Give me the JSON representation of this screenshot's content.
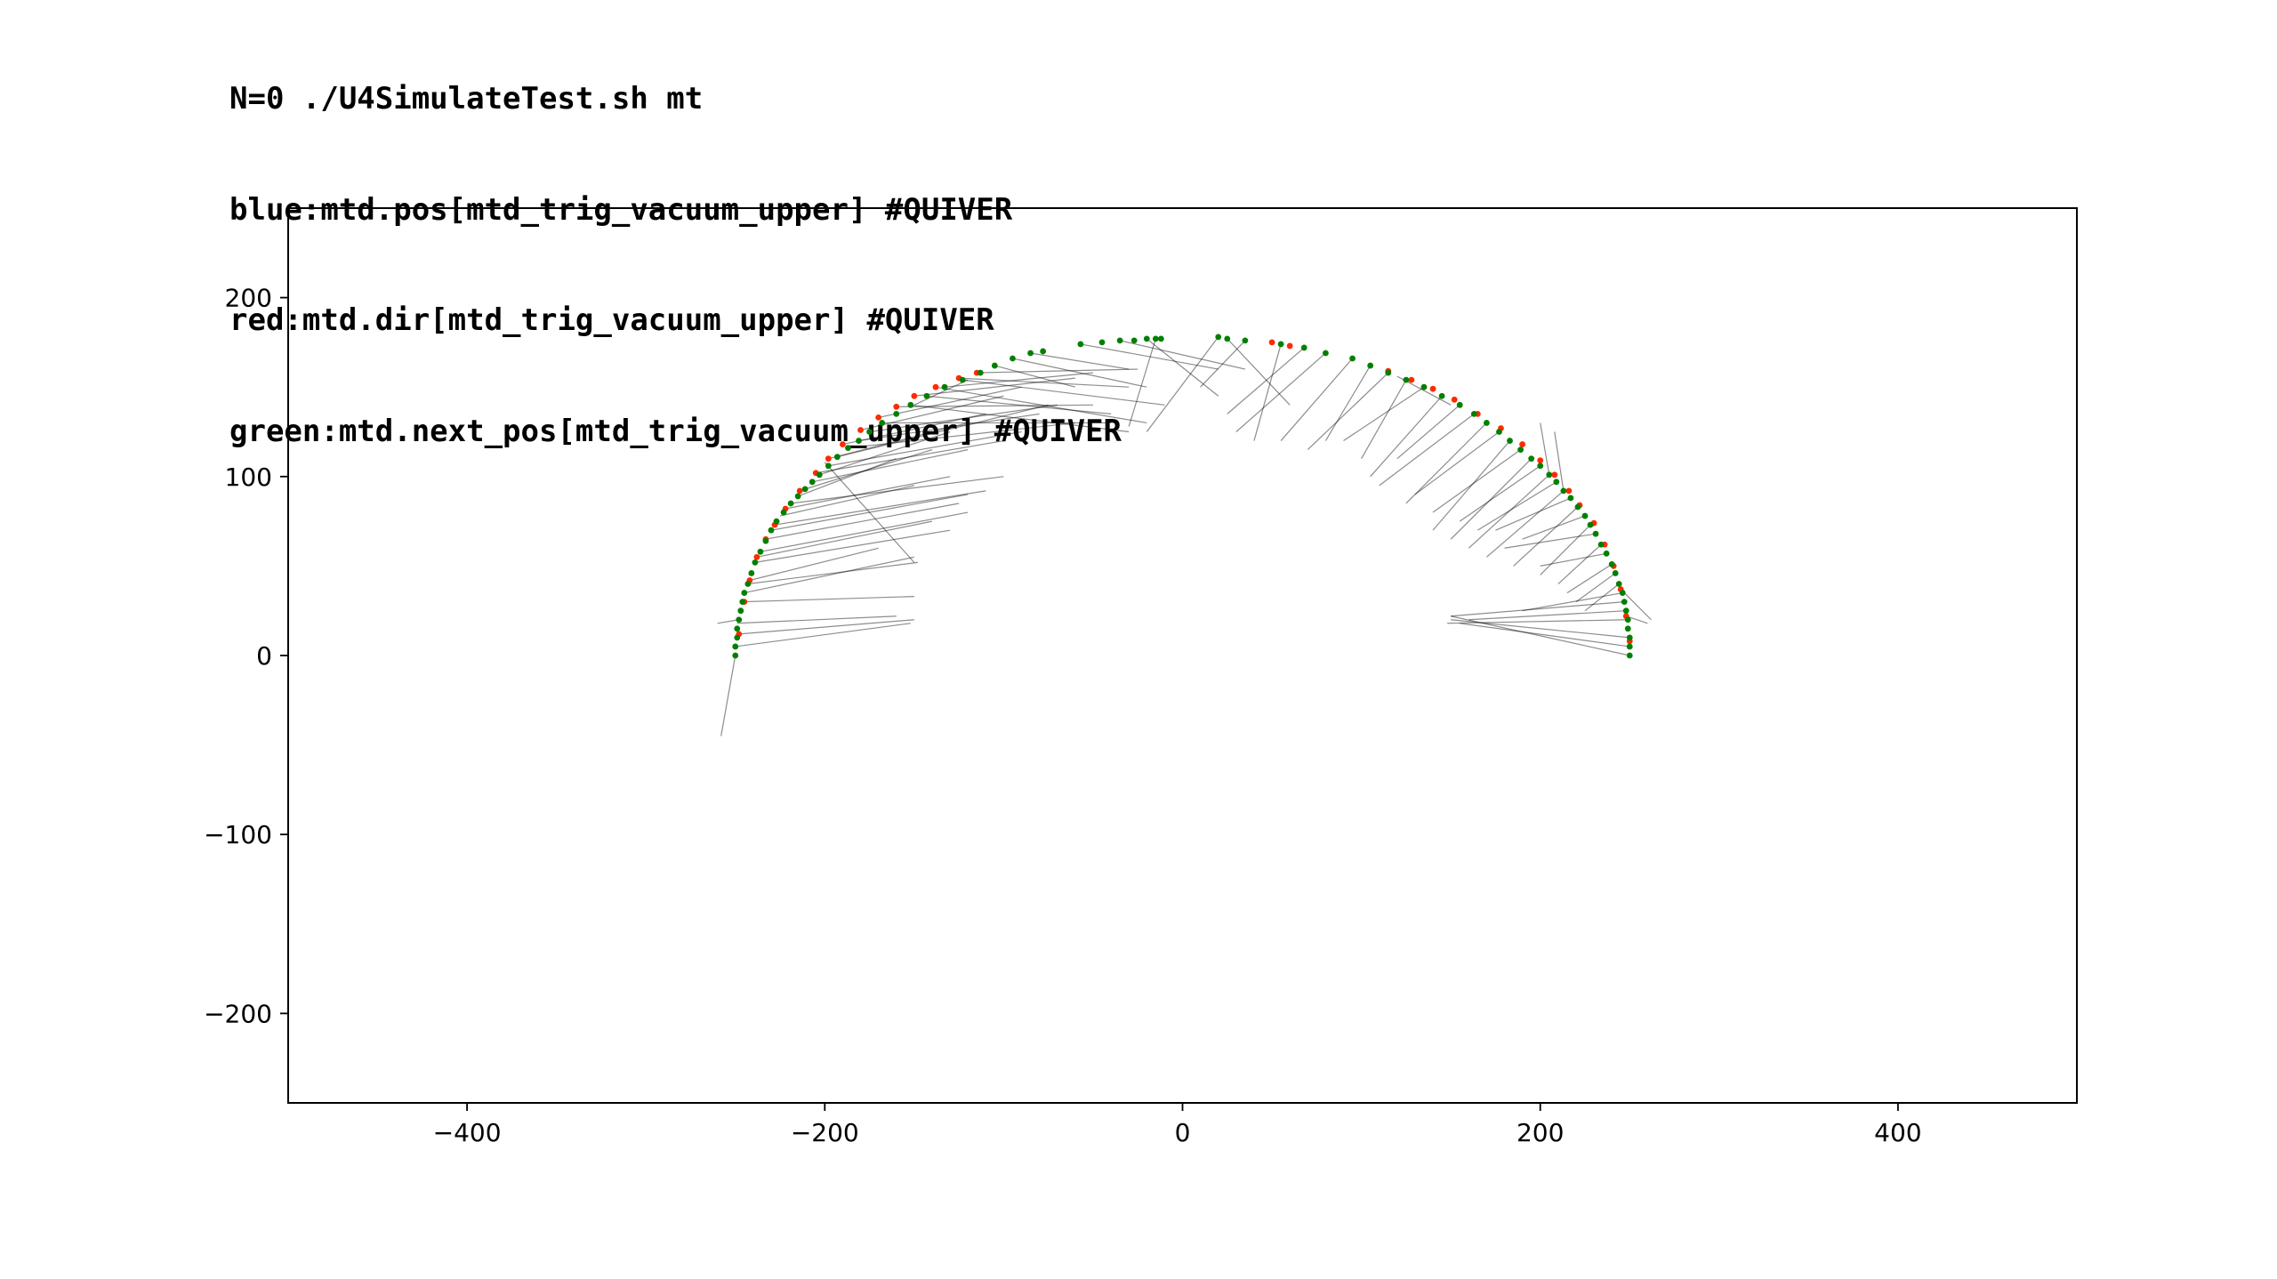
{
  "title_lines": [
    "N=0 ./U4SimulateTest.sh mt",
    "blue:mtd.pos[mtd_trig_vacuum_upper] #QUIVER",
    "red:mtd.dir[mtd_trig_vacuum_upper] #QUIVER",
    "green:mtd.next_pos[mtd_trig_vacuum_upper] #QUIVER"
  ],
  "colors": {
    "pos": "#0000ff",
    "dir": "#ff2a00",
    "next_pos": "#008000",
    "quiver": "#000000",
    "axes": "#000000"
  },
  "chart_data": {
    "type": "scatter",
    "title": "",
    "xlabel": "",
    "ylabel": "",
    "xlim": [
      -500,
      500
    ],
    "ylim": [
      -250,
      250
    ],
    "xticks": [
      -400,
      -200,
      0,
      200,
      400
    ],
    "yticks": [
      200,
      100,
      0,
      -100,
      -200
    ],
    "xtick_labels": [
      "−400",
      "−200",
      "0",
      "200",
      "400"
    ],
    "ytick_labels": [
      "200",
      "100",
      "0",
      "−100",
      "−200"
    ],
    "grid": false,
    "legend": "none",
    "series": [
      {
        "key": "dir",
        "color_key": "dir",
        "points": [
          [
            -248,
            12
          ],
          [
            -245,
            30
          ],
          [
            -242,
            42
          ],
          [
            -238,
            55
          ],
          [
            -233,
            65
          ],
          [
            -228,
            73
          ],
          [
            -222,
            82
          ],
          [
            -214,
            92
          ],
          [
            -205,
            102
          ],
          [
            -198,
            110
          ],
          [
            -190,
            118
          ],
          [
            -180,
            126
          ],
          [
            -170,
            133
          ],
          [
            -160,
            139
          ],
          [
            -150,
            145
          ],
          [
            -138,
            150
          ],
          [
            -125,
            155
          ],
          [
            -115,
            158
          ],
          [
            115,
            159
          ],
          [
            128,
            154
          ],
          [
            140,
            149
          ],
          [
            152,
            143
          ],
          [
            165,
            135
          ],
          [
            178,
            127
          ],
          [
            190,
            118
          ],
          [
            200,
            109
          ],
          [
            208,
            101
          ],
          [
            216,
            92
          ],
          [
            222,
            84
          ],
          [
            230,
            74
          ],
          [
            236,
            62
          ],
          [
            241,
            50
          ],
          [
            245,
            37
          ],
          [
            248,
            22
          ],
          [
            250,
            8
          ],
          [
            50,
            175
          ],
          [
            60,
            173
          ]
        ]
      },
      {
        "key": "next_pos",
        "color_key": "next_pos",
        "points": [
          [
            -250,
            0
          ],
          [
            -250,
            5
          ],
          [
            -249,
            10
          ],
          [
            -249,
            15
          ],
          [
            -248,
            20
          ],
          [
            -247,
            25
          ],
          [
            -246,
            30
          ],
          [
            -245,
            35
          ],
          [
            -243,
            40
          ],
          [
            -241,
            46
          ],
          [
            -239,
            52
          ],
          [
            -236,
            58
          ],
          [
            -233,
            64
          ],
          [
            -230,
            70
          ],
          [
            -227,
            75
          ],
          [
            -223,
            80
          ],
          [
            -219,
            85
          ],
          [
            -215,
            89
          ],
          [
            -211,
            93
          ],
          [
            -207,
            97
          ],
          [
            -203,
            101
          ],
          [
            -198,
            106
          ],
          [
            -193,
            111
          ],
          [
            -187,
            116
          ],
          [
            -181,
            120
          ],
          [
            -175,
            125
          ],
          [
            -168,
            130
          ],
          [
            -160,
            135
          ],
          [
            -152,
            140
          ],
          [
            -143,
            145
          ],
          [
            -133,
            150
          ],
          [
            -123,
            154
          ],
          [
            -113,
            158
          ],
          [
            -105,
            162
          ],
          [
            -95,
            166
          ],
          [
            -85,
            169
          ],
          [
            -78,
            170
          ],
          [
            -57,
            174
          ],
          [
            -45,
            175
          ],
          [
            -35,
            176
          ],
          [
            -27,
            176
          ],
          [
            -20,
            177
          ],
          [
            -15,
            177
          ],
          [
            -12,
            177
          ],
          [
            20,
            178
          ],
          [
            25,
            177
          ],
          [
            35,
            176
          ],
          [
            55,
            174
          ],
          [
            68,
            172
          ],
          [
            80,
            169
          ],
          [
            95,
            166
          ],
          [
            105,
            162
          ],
          [
            115,
            158
          ],
          [
            125,
            154
          ],
          [
            135,
            150
          ],
          [
            145,
            145
          ],
          [
            155,
            140
          ],
          [
            163,
            135
          ],
          [
            170,
            130
          ],
          [
            177,
            125
          ],
          [
            183,
            120
          ],
          [
            189,
            115
          ],
          [
            195,
            110
          ],
          [
            200,
            106
          ],
          [
            205,
            101
          ],
          [
            209,
            97
          ],
          [
            213,
            92
          ],
          [
            217,
            88
          ],
          [
            221,
            83
          ],
          [
            225,
            78
          ],
          [
            228,
            73
          ],
          [
            231,
            68
          ],
          [
            234,
            62
          ],
          [
            237,
            57
          ],
          [
            240,
            51
          ],
          [
            242,
            46
          ],
          [
            244,
            40
          ],
          [
            246,
            35
          ],
          [
            247,
            30
          ],
          [
            248,
            25
          ],
          [
            249,
            20
          ],
          [
            249,
            15
          ],
          [
            250,
            10
          ],
          [
            250,
            5
          ],
          [
            250,
            0
          ]
        ]
      }
    ],
    "quiver": [
      [
        -248,
        12,
        -150,
        20
      ],
      [
        -250,
        5,
        -152,
        18
      ],
      [
        -249,
        18,
        -160,
        22
      ],
      [
        -246,
        30,
        -150,
        33
      ],
      [
        -245,
        35,
        -150,
        55
      ],
      [
        -243,
        40,
        -148,
        52
      ],
      [
        -242,
        42,
        -170,
        60
      ],
      [
        -239,
        52,
        -130,
        70
      ],
      [
        -238,
        55,
        -140,
        75
      ],
      [
        -236,
        58,
        -120,
        80
      ],
      [
        -233,
        65,
        -125,
        85
      ],
      [
        -230,
        70,
        -120,
        90
      ],
      [
        -228,
        73,
        -110,
        92
      ],
      [
        -225,
        78,
        -150,
        95
      ],
      [
        -222,
        82,
        -130,
        100
      ],
      [
        -219,
        85,
        -100,
        100
      ],
      [
        -215,
        89,
        -160,
        110
      ],
      [
        -211,
        93,
        -140,
        115
      ],
      [
        -207,
        97,
        -120,
        115
      ],
      [
        -205,
        102,
        -100,
        120
      ],
      [
        -203,
        101,
        -130,
        125
      ],
      [
        -198,
        106,
        -90,
        125
      ],
      [
        -198,
        110,
        -120,
        130
      ],
      [
        -193,
        111,
        -75,
        140
      ],
      [
        -190,
        118,
        -110,
        135
      ],
      [
        -187,
        116,
        -60,
        130
      ],
      [
        -181,
        120,
        -80,
        135
      ],
      [
        -180,
        126,
        -100,
        145
      ],
      [
        -175,
        125,
        -70,
        140
      ],
      [
        -170,
        133,
        -90,
        150
      ],
      [
        -168,
        130,
        -40,
        130
      ],
      [
        -160,
        139,
        -50,
        140
      ],
      [
        -152,
        140,
        -30,
        125
      ],
      [
        -150,
        145,
        -60,
        155
      ],
      [
        -143,
        145,
        -40,
        135
      ],
      [
        -138,
        150,
        -20,
        130
      ],
      [
        -133,
        150,
        -50,
        158
      ],
      [
        -125,
        155,
        -30,
        150
      ],
      [
        -123,
        154,
        -10,
        140
      ],
      [
        -115,
        158,
        -25,
        160
      ],
      [
        -105,
        162,
        -60,
        150
      ],
      [
        -95,
        166,
        -20,
        150
      ],
      [
        -85,
        169,
        -30,
        160
      ],
      [
        -57,
        174,
        20,
        160
      ],
      [
        -35,
        176,
        35,
        160
      ],
      [
        -20,
        177,
        20,
        145
      ],
      [
        -15,
        177,
        -30,
        128
      ],
      [
        20,
        178,
        -20,
        125
      ],
      [
        25,
        177,
        60,
        140
      ],
      [
        35,
        176,
        10,
        150
      ],
      [
        55,
        174,
        40,
        120
      ],
      [
        68,
        172,
        25,
        135
      ],
      [
        80,
        169,
        30,
        125
      ],
      [
        95,
        166,
        55,
        120
      ],
      [
        105,
        162,
        80,
        120
      ],
      [
        115,
        158,
        70,
        115
      ],
      [
        125,
        154,
        100,
        110
      ],
      [
        135,
        150,
        90,
        120
      ],
      [
        145,
        145,
        105,
        100
      ],
      [
        155,
        140,
        120,
        110
      ],
      [
        163,
        135,
        110,
        95
      ],
      [
        170,
        130,
        125,
        85
      ],
      [
        177,
        125,
        130,
        90
      ],
      [
        183,
        120,
        140,
        70
      ],
      [
        189,
        115,
        140,
        80
      ],
      [
        195,
        110,
        150,
        65
      ],
      [
        200,
        106,
        155,
        75
      ],
      [
        205,
        101,
        160,
        60
      ],
      [
        209,
        97,
        165,
        70
      ],
      [
        213,
        92,
        170,
        55
      ],
      [
        217,
        88,
        175,
        70
      ],
      [
        221,
        83,
        185,
        50
      ],
      [
        225,
        78,
        190,
        65
      ],
      [
        228,
        73,
        200,
        45
      ],
      [
        231,
        68,
        180,
        60
      ],
      [
        234,
        62,
        210,
        40
      ],
      [
        237,
        57,
        200,
        50
      ],
      [
        240,
        51,
        215,
        35
      ],
      [
        242,
        46,
        220,
        30
      ],
      [
        244,
        40,
        225,
        25
      ],
      [
        246,
        35,
        190,
        25
      ],
      [
        247,
        30,
        150,
        22
      ],
      [
        248,
        25,
        160,
        20
      ],
      [
        249,
        20,
        148,
        18
      ],
      [
        250,
        10,
        150,
        20
      ],
      [
        250,
        5,
        155,
        18
      ],
      [
        250,
        0,
        150,
        22
      ],
      [
        -250,
        0,
        -258,
        -45
      ],
      [
        -248,
        20,
        -260,
        18
      ],
      [
        248,
        22,
        260,
        18
      ],
      [
        245,
        37,
        262,
        20
      ],
      [
        -200,
        108,
        -150,
        52
      ],
      [
        213,
        92,
        208,
        125
      ],
      [
        205,
        101,
        200,
        130
      ],
      [
        -120,
        154,
        -150,
        140
      ],
      [
        120,
        156,
        150,
        140
      ]
    ]
  }
}
